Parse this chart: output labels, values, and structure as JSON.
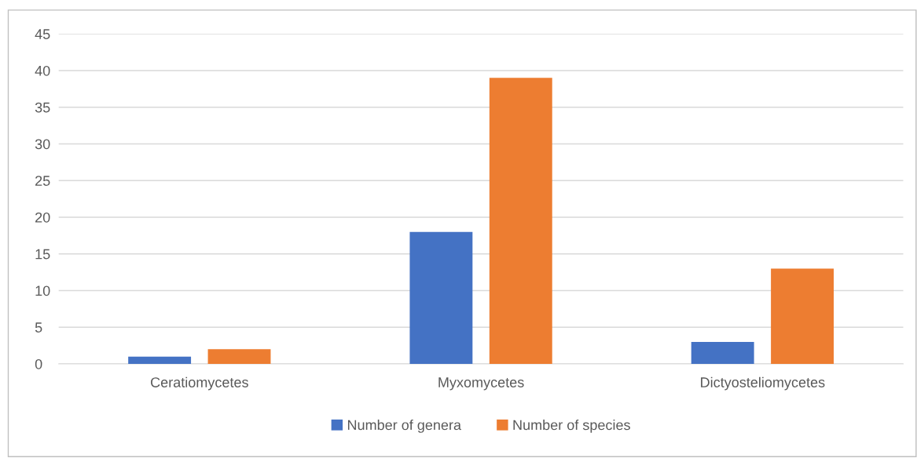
{
  "chart_data": {
    "type": "bar",
    "categories": [
      "Ceratiomycetes",
      "Myxomycetes",
      "Dictyosteliomycetes"
    ],
    "series": [
      {
        "name": "Number of genera",
        "color": "#4472c4",
        "values": [
          1,
          18,
          3
        ]
      },
      {
        "name": "Number of species",
        "color": "#ed7d31",
        "values": [
          2,
          39,
          13
        ]
      }
    ],
    "ylim": [
      0,
      45
    ],
    "yticks": [
      0,
      5,
      10,
      15,
      20,
      25,
      30,
      35,
      40,
      45
    ],
    "grid": "y",
    "legend": "bottom"
  }
}
